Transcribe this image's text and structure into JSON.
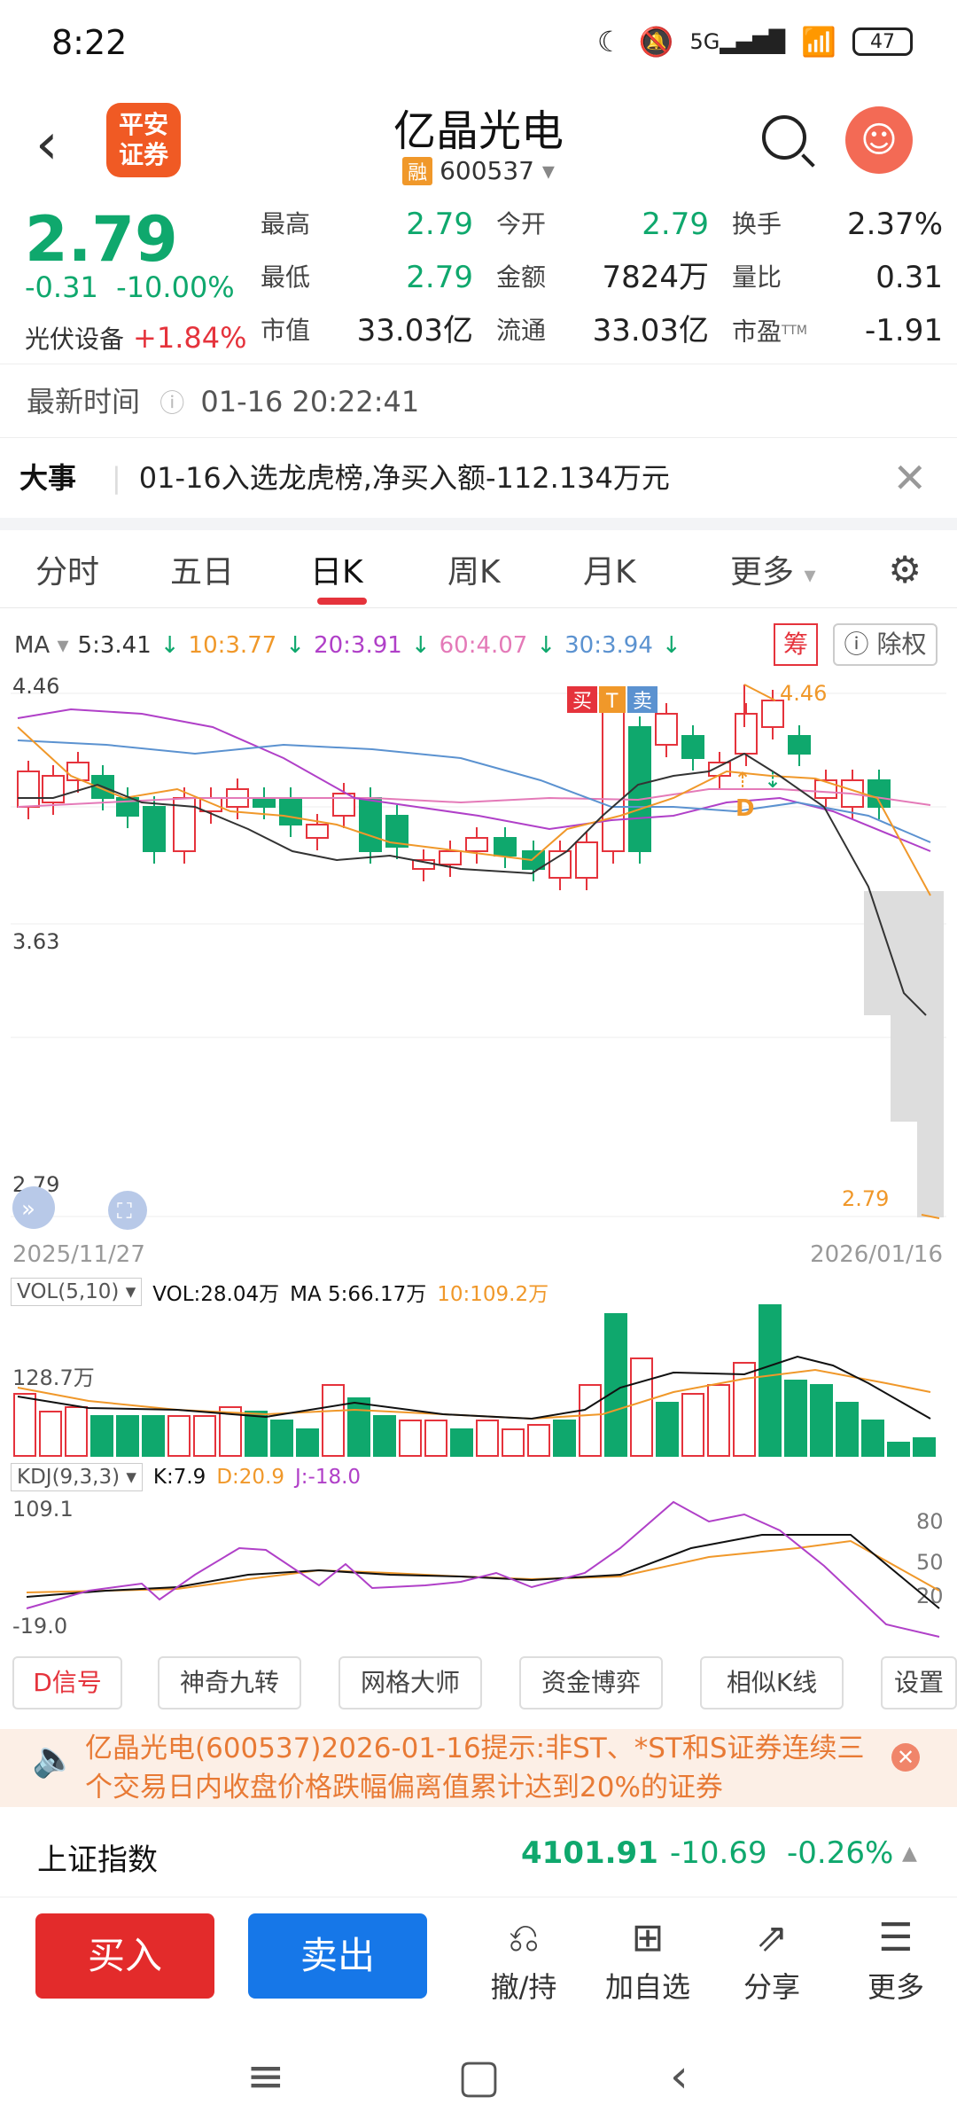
{
  "status": {
    "time": "8:22",
    "signal": "5G",
    "battery": "47"
  },
  "header": {
    "title": "亿晶光电",
    "rong": "融",
    "code": "600537",
    "logo_line1": "平安",
    "logo_line2": "证券"
  },
  "quote": {
    "price": "2.79",
    "change": "-0.31",
    "pct": "-10.00%",
    "sector_name": "光伏设备",
    "sector_pct": "+1.84%",
    "cells": [
      {
        "label": "最高",
        "value": "2.79"
      },
      {
        "label": "今开",
        "value": "2.79"
      },
      {
        "label": "换手",
        "value": "2.37%"
      },
      {
        "label": "最低",
        "value": "2.79"
      },
      {
        "label": "金额",
        "value": "7824万"
      },
      {
        "label": "量比",
        "value": "0.31"
      },
      {
        "label": "市值",
        "value": "33.03亿"
      },
      {
        "label": "流通",
        "value": "33.03亿"
      },
      {
        "label": "市盈",
        "value": "-1.91"
      }
    ],
    "ttm": "TTM"
  },
  "latest": {
    "label": "最新时间",
    "time": "01-16 20:22:41"
  },
  "event": {
    "label": "大事",
    "text": "01-16入选龙虎榜,净买入额-112.134万元"
  },
  "tabs": [
    "分时",
    "五日",
    "日K",
    "周K",
    "月K",
    "更多"
  ],
  "ma": {
    "label": "MA",
    "ma5": "5:3.41",
    "ma10": "10:3.77",
    "ma20": "20:3.91",
    "ma60": "60:4.07",
    "ma30": "30:3.94",
    "chou": "筹",
    "chuquan": "除权"
  },
  "kchart": {
    "y_high": "4.46",
    "y_mid": "3.63",
    "y_low": "2.79",
    "max_label": "4.46",
    "min_label": "2.79",
    "date_start": "2025/11/27",
    "date_end": "2026/01/16",
    "marker_buy": "买",
    "marker_t": "T",
    "marker_sell": "卖",
    "marker_d": "D"
  },
  "vol": {
    "label": "VOL(5,10)",
    "vol": "VOL:28.04万",
    "ma5": "MA 5:66.17万",
    "ma10": "10:109.2万",
    "axis": "128.7万"
  },
  "kdj": {
    "label": "KDJ(9,3,3)",
    "k": "K:7.9",
    "d": "D:20.9",
    "j": "J:-18.0",
    "top": "109.1",
    "bottom": "-19.0",
    "l80": "80",
    "l50": "50",
    "l20": "20"
  },
  "tools": [
    "D信号",
    "神奇九转",
    "网格大师",
    "资金博弈",
    "相似K线",
    "设置"
  ],
  "notice": {
    "text": "亿晶光电(600537)2026-01-16提示:非ST、*ST和S证券连续三个交易日内收盘价格跌幅偏离值累计达到20%的证券"
  },
  "index": {
    "name": "上证指数",
    "value": "4101.91",
    "change": "-10.69",
    "pct": "-0.26%"
  },
  "bottom": {
    "buy": "买入",
    "sell": "卖出",
    "items": [
      "撤/持",
      "加自选",
      "分享",
      "更多"
    ]
  }
}
